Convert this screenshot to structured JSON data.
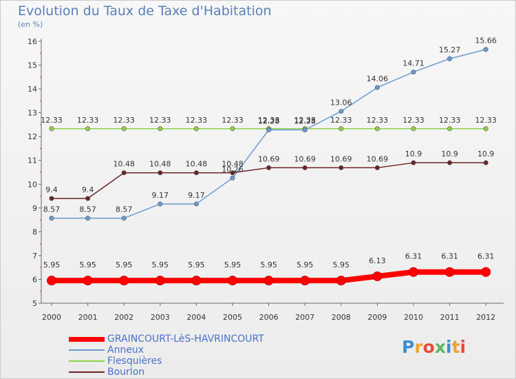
{
  "header": {
    "title": "Evolution du Taux de Taxe d'Habitation",
    "subtitle": "(en %)"
  },
  "logo": {
    "text": "Proxiti",
    "colors": [
      "#3e8ed0",
      "#f0a23a",
      "#e84b3c",
      "#5bb85c"
    ]
  },
  "chart_data": {
    "type": "line",
    "title": "Evolution du Taux de Taxe d'Habitation",
    "ylabel": "(en %)",
    "xlabel": "",
    "categories": [
      "2000",
      "2001",
      "2002",
      "2003",
      "2004",
      "2005",
      "2006",
      "2007",
      "2008",
      "2009",
      "2010",
      "2011",
      "2012"
    ],
    "ylim": [
      5,
      16
    ],
    "yticks": [
      "5",
      "6",
      "7",
      "8",
      "9",
      "10",
      "11",
      "12",
      "13",
      "14",
      "15",
      "16"
    ],
    "grid": false,
    "legend_position": "bottom-left",
    "series": [
      {
        "name": "GRAINCOURT-LèS-HAVRINCOURT",
        "color": "#ff0000",
        "values": [
          5.95,
          5.95,
          5.95,
          5.95,
          5.95,
          5.95,
          5.95,
          5.95,
          5.95,
          6.13,
          6.31,
          6.31,
          6.31
        ],
        "labels": [
          "5.95",
          "5.95",
          "5.95",
          "5.95",
          "5.95",
          "5.95",
          "5.95",
          "5.95",
          "5.95",
          "6.13",
          "6.31",
          "6.31",
          "6.31"
        ]
      },
      {
        "name": "Anneux",
        "color": "#6b9bd1",
        "values": [
          8.57,
          8.57,
          8.57,
          9.17,
          9.17,
          10.26,
          12.28,
          12.28,
          13.06,
          14.06,
          14.71,
          15.27,
          15.66
        ],
        "labels": [
          "8.57",
          "8.57",
          "8.57",
          "9.17",
          "9.17",
          "10.26",
          "12.28",
          "12.28",
          "13.06",
          "14.06",
          "14.71",
          "15.27",
          "15.66"
        ]
      },
      {
        "name": "Flesquières",
        "color": "#8ed24a",
        "values": [
          12.33,
          12.33,
          12.33,
          12.33,
          12.33,
          12.33,
          12.33,
          12.33,
          12.33,
          12.33,
          12.33,
          12.33,
          12.33
        ],
        "labels": [
          "12.33",
          "12.33",
          "12.33",
          "12.33",
          "12.33",
          "12.33",
          "12.33",
          "12.33",
          "12.33",
          "12.33",
          "12.33",
          "12.33",
          "12.33"
        ]
      },
      {
        "name": "Bourlon",
        "color": "#6b2326",
        "values": [
          9.4,
          9.4,
          10.48,
          10.48,
          10.48,
          10.48,
          10.69,
          10.69,
          10.69,
          10.69,
          10.9,
          10.9,
          10.9
        ],
        "labels": [
          "9.4",
          "9.4",
          "10.48",
          "10.48",
          "10.48",
          "10.48",
          "10.69",
          "10.69",
          "10.69",
          "10.69",
          "10.9",
          "10.9",
          "10.9"
        ]
      }
    ]
  }
}
